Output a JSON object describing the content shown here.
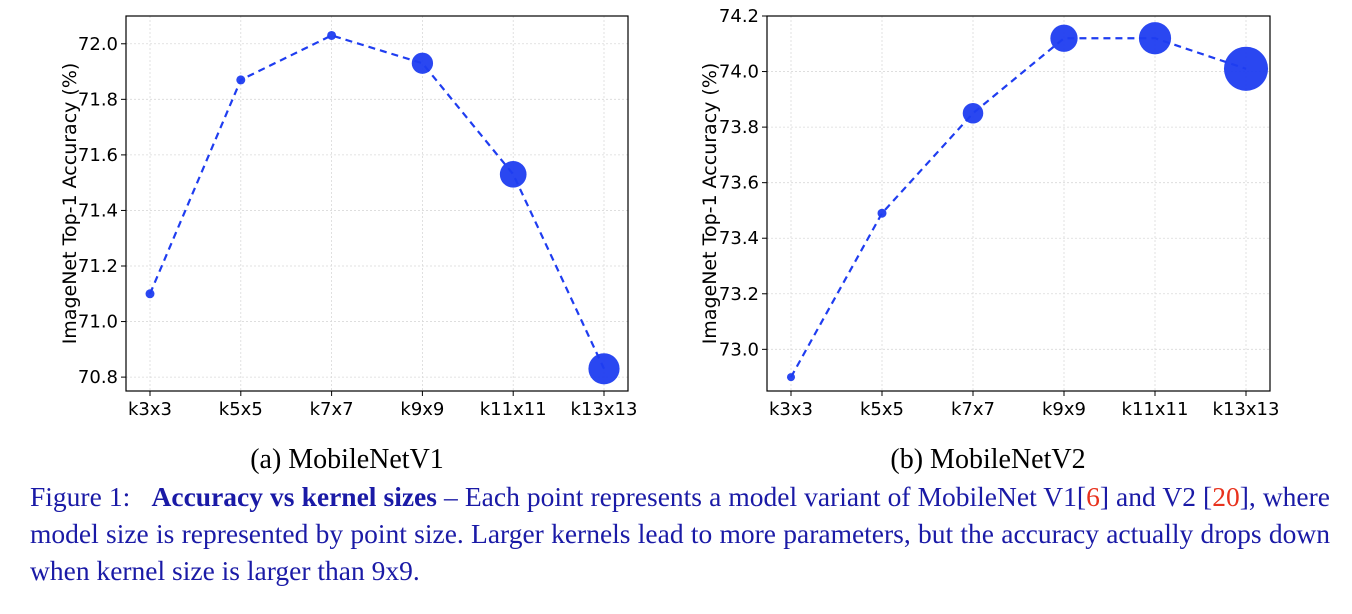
{
  "chart_data": [
    {
      "type": "scatter",
      "panel": "a",
      "subtitle": "(a) MobileNetV1",
      "ylabel": "ImageNet Top-1 Accuracy (%)",
      "xlabel": "",
      "categories": [
        "k3x3",
        "k5x5",
        "k7x7",
        "k9x9",
        "k11x11",
        "k13x13"
      ],
      "values": [
        71.1,
        71.87,
        72.03,
        71.93,
        71.53,
        70.83
      ],
      "point_size_rank": [
        1,
        1,
        1,
        1.4,
        2.2,
        3.0
      ],
      "ylim": [
        70.75,
        72.1
      ],
      "yticks": [
        "70.8",
        "71.0",
        "71.2",
        "71.4",
        "71.6",
        "71.8",
        "72.0"
      ],
      "grid": true,
      "line_style": "dashed",
      "color": "#1f3df0"
    },
    {
      "type": "scatter",
      "panel": "b",
      "subtitle": "(b) MobileNetV2",
      "ylabel": "ImageNet Top-1 Accuracy (%)",
      "xlabel": "",
      "categories": [
        "k3x3",
        "k5x5",
        "k7x7",
        "k9x9",
        "k11x11",
        "k13x13"
      ],
      "values": [
        72.9,
        73.49,
        73.85,
        74.12,
        74.12,
        74.01
      ],
      "point_size_rank": [
        0.8,
        1,
        1.3,
        2.3,
        3.2,
        6.0
      ],
      "ylim": [
        72.85,
        74.2
      ],
      "yticks": [
        "73.0",
        "73.2",
        "73.4",
        "73.6",
        "73.8",
        "74.0",
        "74.2"
      ],
      "grid": true,
      "line_style": "dashed",
      "color": "#1f3df0"
    }
  ],
  "caption": {
    "prefix": "Figure 1:",
    "bold": "Accuracy vs kernel sizes",
    "text1": " – Each point represents a model variant of MobileNet V1[",
    "ref1": "6",
    "text2": "] and V2 [",
    "ref2": "20",
    "text3": "], where model size is represented by point size. Larger kernels lead to more parameters, but the accuracy actually drops down when kernel size is larger than 9x9."
  }
}
